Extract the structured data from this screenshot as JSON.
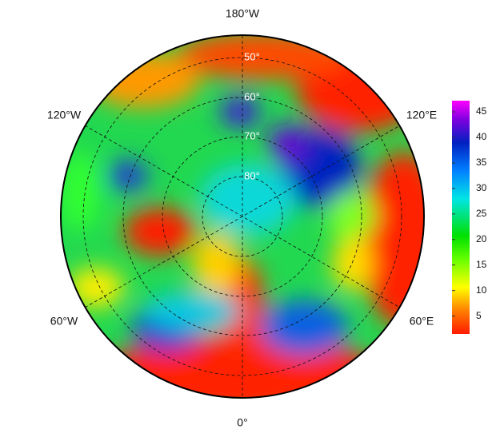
{
  "map": {
    "longitude_labels": {
      "top": "180°W",
      "upper_left": "120°W",
      "upper_right": "120°E",
      "lower_left": "60°W",
      "lower_right": "60°E",
      "bottom": "0°"
    },
    "latitude_labels": [
      "50°",
      "60°",
      "70°",
      "80°"
    ]
  },
  "colorbar": {
    "lim": [
      1.5,
      47.2
    ],
    "ticks": [
      5,
      10,
      15,
      20,
      25,
      30,
      35,
      40,
      45
    ]
  }
}
